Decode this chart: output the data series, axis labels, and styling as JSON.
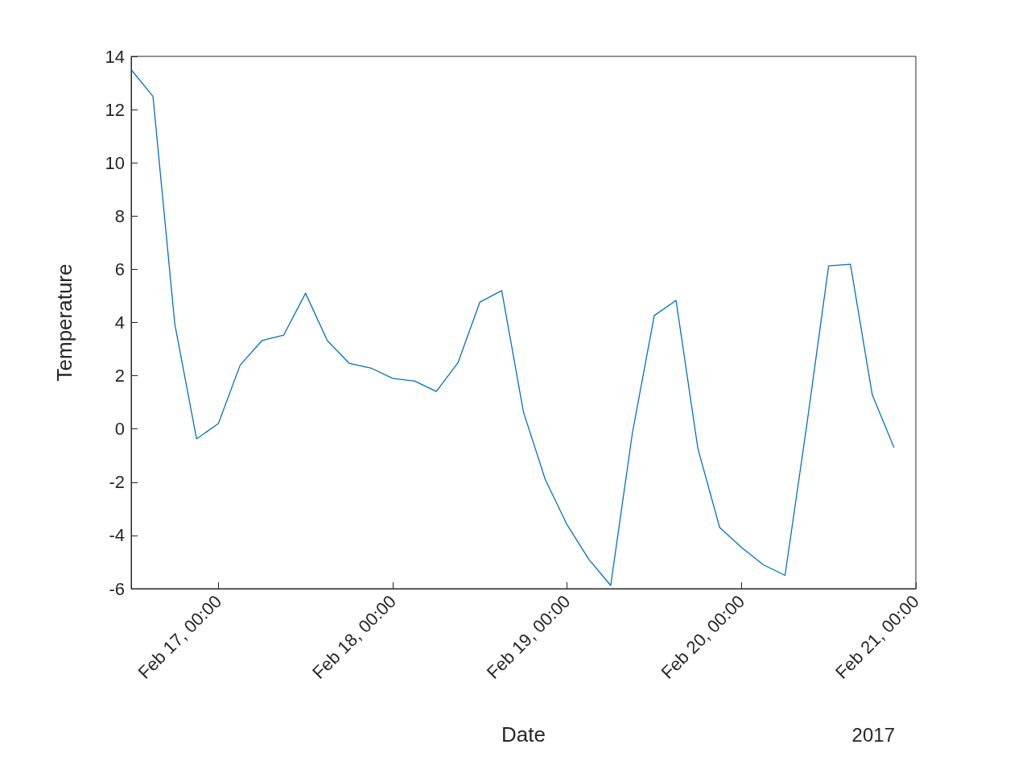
{
  "chart_data": {
    "type": "line",
    "xlabel": "Date",
    "ylabel": "Temperature",
    "x": [
      "2017-02-16T12:00",
      "2017-02-16T15:00",
      "2017-02-16T18:00",
      "2017-02-16T21:00",
      "2017-02-17T00:00",
      "2017-02-17T03:00",
      "2017-02-17T06:00",
      "2017-02-17T09:00",
      "2017-02-17T12:00",
      "2017-02-17T15:00",
      "2017-02-17T18:00",
      "2017-02-17T21:00",
      "2017-02-18T00:00",
      "2017-02-18T03:00",
      "2017-02-18T06:00",
      "2017-02-18T09:00",
      "2017-02-18T12:00",
      "2017-02-18T15:00",
      "2017-02-18T18:00",
      "2017-02-18T21:00",
      "2017-02-19T00:00",
      "2017-02-19T03:00",
      "2017-02-19T06:00",
      "2017-02-19T09:00",
      "2017-02-19T12:00",
      "2017-02-19T15:00",
      "2017-02-19T18:00",
      "2017-02-19T21:00",
      "2017-02-20T00:00",
      "2017-02-20T03:00",
      "2017-02-20T06:00",
      "2017-02-20T09:00",
      "2017-02-20T12:00",
      "2017-02-20T15:00",
      "2017-02-20T18:00",
      "2017-02-20T21:00"
    ],
    "series": [
      {
        "color": "#0072bd",
        "values": [
          13.5,
          12.5,
          3.95,
          -0.37,
          0.2,
          2.4,
          3.32,
          3.53,
          5.1,
          3.32,
          2.47,
          2.29,
          1.9,
          1.8,
          1.41,
          2.5,
          4.77,
          5.2,
          0.63,
          -1.9,
          -3.6,
          -4.9,
          -5.88,
          -0.13,
          4.26,
          4.83,
          -0.73,
          -3.7,
          -4.45,
          -5.1,
          -5.5,
          0.17,
          6.13,
          6.19,
          1.29,
          -0.7
        ]
      }
    ],
    "xlim": [
      "2017-02-16T12:00",
      "2017-02-21T00:00"
    ],
    "xticks": [
      {
        "value": "2017-02-17T00:00",
        "label": "Feb 17, 00:00"
      },
      {
        "value": "2017-02-18T00:00",
        "label": "Feb 18, 00:00"
      },
      {
        "value": "2017-02-19T00:00",
        "label": "Feb 19, 00:00"
      },
      {
        "value": "2017-02-20T00:00",
        "label": "Feb 20, 00:00"
      },
      {
        "value": "2017-02-21T00:00",
        "label": "Feb 21, 00:00"
      }
    ],
    "ylim": [
      -6,
      14
    ],
    "yticks": [
      -6,
      -4,
      -2,
      0,
      2,
      4,
      6,
      8,
      10,
      12,
      14
    ],
    "annotations": [
      "2017"
    ],
    "grid": false,
    "marker": "none",
    "line_style": "solid"
  }
}
